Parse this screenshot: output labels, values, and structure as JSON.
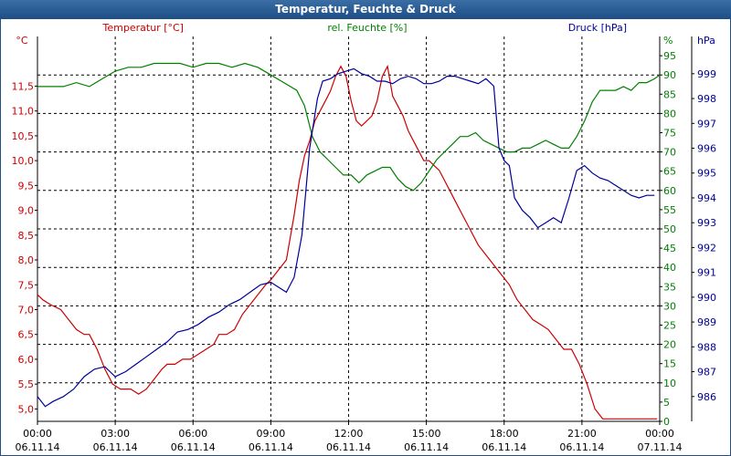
{
  "window": {
    "title": "Temperatur, Feuchte & Druck"
  },
  "colors": {
    "temperature": "#cc0000",
    "humidity": "#008000",
    "pressure": "#000099",
    "grid": "#000000",
    "titlebar": "#1f4f86"
  },
  "chart_data": {
    "type": "line",
    "title": "Temperatur, Feuchte & Druck",
    "grid": true,
    "x_labels": [
      {
        "time": "00:00",
        "date": "06.11.14"
      },
      {
        "time": "03:00",
        "date": "06.11.14"
      },
      {
        "time": "06:00",
        "date": "06.11.14"
      },
      {
        "time": "09:00",
        "date": "06.11.14"
      },
      {
        "time": "12:00",
        "date": "06.11.14"
      },
      {
        "time": "15:00",
        "date": "06.11.14"
      },
      {
        "time": "18:00",
        "date": "06.11.14"
      },
      {
        "time": "21:00",
        "date": "06.11.14"
      },
      {
        "time": "00:00",
        "date": "07.11.14"
      }
    ],
    "x_range_hours": [
      0,
      24
    ],
    "axes": {
      "temperature": {
        "label": "Temperatur [°C]",
        "unit": "°C",
        "range": [
          4.75,
          12.5
        ],
        "ticks": [
          "5,0",
          "5,5",
          "6,0",
          "6,5",
          "7,0",
          "7,5",
          "8,0",
          "8,5",
          "9,0",
          "9,5",
          "10,0",
          "10,5",
          "11,0",
          "11,5"
        ],
        "tick_values": [
          5,
          5.5,
          6,
          6.5,
          7,
          7.5,
          8,
          8.5,
          9,
          9.5,
          10,
          10.5,
          11,
          11.5
        ]
      },
      "humidity": {
        "label": "rel. Feuchte [%]",
        "unit": "%",
        "range": [
          0,
          100
        ],
        "ticks": [
          "0",
          "5",
          "10",
          "15",
          "20",
          "25",
          "30",
          "35",
          "40",
          "45",
          "50",
          "55",
          "60",
          "65",
          "70",
          "75",
          "80",
          "85",
          "90",
          "95"
        ],
        "tick_values": [
          0,
          5,
          10,
          15,
          20,
          25,
          30,
          35,
          40,
          45,
          50,
          55,
          60,
          65,
          70,
          75,
          80,
          85,
          90,
          95
        ]
      },
      "pressure": {
        "label": "Druck [hPa]",
        "unit": "hPa",
        "range": [
          985,
          1000.5
        ],
        "ticks": [
          "986",
          "987",
          "988",
          "989",
          "990",
          "991",
          "992",
          "993",
          "994",
          "995",
          "996",
          "997",
          "998",
          "999"
        ],
        "tick_values": [
          986,
          987,
          988,
          989,
          990,
          991,
          992,
          993,
          994,
          995,
          996,
          997,
          998,
          999
        ]
      }
    },
    "series": [
      {
        "name": "Temperatur [°C]",
        "axis": "temperature",
        "color": "#cc0000",
        "x": [
          0,
          0.2,
          0.5,
          0.9,
          1.2,
          1.5,
          1.8,
          2.0,
          2.3,
          2.6,
          2.9,
          3.2,
          3.6,
          3.9,
          4.2,
          4.5,
          4.8,
          5.0,
          5.3,
          5.6,
          5.9,
          6.2,
          6.5,
          6.8,
          7.0,
          7.3,
          7.6,
          7.9,
          8.2,
          8.5,
          8.8,
          9.0,
          9.3,
          9.6,
          9.9,
          10.1,
          10.3,
          10.5,
          10.7,
          10.9,
          11.1,
          11.3,
          11.5,
          11.7,
          11.9,
          12.1,
          12.3,
          12.5,
          12.7,
          12.9,
          13.1,
          13.3,
          13.5,
          13.7,
          13.9,
          14.1,
          14.3,
          14.5,
          14.7,
          14.9,
          15.1,
          15.3,
          15.5,
          15.7,
          15.9,
          16.1,
          16.4,
          16.7,
          17.0,
          17.3,
          17.6,
          17.9,
          18.2,
          18.5,
          18.8,
          19.1,
          19.4,
          19.7,
          20.0,
          20.3,
          20.6,
          20.9,
          21.2,
          21.5,
          21.8,
          22.1,
          22.4,
          22.7,
          23.0,
          23.3,
          23.6,
          23.9
        ],
        "values": [
          7.3,
          7.2,
          7.1,
          7.0,
          6.8,
          6.6,
          6.5,
          6.5,
          6.2,
          5.8,
          5.5,
          5.4,
          5.4,
          5.3,
          5.4,
          5.6,
          5.8,
          5.9,
          5.9,
          6.0,
          6.0,
          6.1,
          6.2,
          6.3,
          6.5,
          6.5,
          6.6,
          6.9,
          7.1,
          7.3,
          7.5,
          7.6,
          7.8,
          8.0,
          8.9,
          9.6,
          10.1,
          10.4,
          10.8,
          11.0,
          11.2,
          11.4,
          11.7,
          11.9,
          11.7,
          11.2,
          10.8,
          10.7,
          10.8,
          10.9,
          11.2,
          11.7,
          11.9,
          11.3,
          11.1,
          10.9,
          10.6,
          10.4,
          10.2,
          10.0,
          10.0,
          9.9,
          9.8,
          9.6,
          9.4,
          9.2,
          8.9,
          8.6,
          8.3,
          8.1,
          7.9,
          7.7,
          7.5,
          7.2,
          7.0,
          6.8,
          6.7,
          6.6,
          6.4,
          6.2,
          6.2,
          5.9,
          5.5,
          5.0,
          4.8,
          4.8,
          4.8,
          4.8,
          4.8,
          4.8,
          4.8,
          4.8
        ]
      },
      {
        "name": "rel. Feuchte [%]",
        "axis": "humidity",
        "color": "#008000",
        "x": [
          0,
          0.5,
          1.0,
          1.5,
          2.0,
          2.5,
          3.0,
          3.5,
          4.0,
          4.5,
          5.0,
          5.5,
          6.0,
          6.5,
          7.0,
          7.5,
          8.0,
          8.5,
          9.0,
          9.5,
          10.0,
          10.3,
          10.6,
          10.9,
          11.2,
          11.5,
          11.8,
          12.1,
          12.4,
          12.7,
          13.0,
          13.3,
          13.6,
          13.9,
          14.2,
          14.5,
          14.8,
          15.1,
          15.4,
          15.7,
          16.0,
          16.3,
          16.6,
          16.9,
          17.2,
          17.5,
          17.8,
          18.1,
          18.4,
          18.7,
          19.0,
          19.3,
          19.6,
          19.9,
          20.2,
          20.5,
          20.8,
          21.1,
          21.4,
          21.7,
          22.0,
          22.3,
          22.6,
          22.9,
          23.2,
          23.5,
          23.8,
          24.0
        ],
        "values": [
          87,
          87,
          87,
          88,
          87,
          89,
          91,
          92,
          92,
          93,
          93,
          93,
          92,
          93,
          93,
          92,
          93,
          92,
          90,
          88,
          86,
          82,
          74,
          70,
          68,
          66,
          64,
          64,
          62,
          64,
          65,
          66,
          66,
          63,
          61,
          60,
          62,
          65,
          68,
          70,
          72,
          74,
          74,
          75,
          73,
          72,
          71,
          70,
          70,
          71,
          71,
          72,
          73,
          72,
          71,
          71,
          74,
          78,
          83,
          86,
          86,
          86,
          87,
          86,
          88,
          88,
          89,
          90
        ]
      },
      {
        "name": "Druck [hPa]",
        "axis": "pressure",
        "color": "#000099",
        "x": [
          0,
          0.3,
          0.6,
          1.0,
          1.4,
          1.8,
          2.2,
          2.6,
          3.0,
          3.4,
          3.8,
          4.2,
          4.6,
          5.0,
          5.4,
          5.8,
          6.2,
          6.6,
          7.0,
          7.4,
          7.8,
          8.2,
          8.6,
          9.0,
          9.3,
          9.6,
          9.9,
          10.2,
          10.5,
          10.8,
          11.0,
          11.3,
          11.6,
          11.9,
          12.2,
          12.5,
          12.8,
          13.1,
          13.4,
          13.7,
          14.0,
          14.3,
          14.6,
          14.9,
          15.2,
          15.5,
          15.8,
          16.1,
          16.4,
          16.7,
          17.0,
          17.3,
          17.6,
          17.8,
          18.0,
          18.2,
          18.4,
          18.7,
          19.0,
          19.3,
          19.6,
          19.9,
          20.2,
          20.5,
          20.8,
          21.1,
          21.4,
          21.7,
          22.0,
          22.3,
          22.6,
          22.9,
          23.2,
          23.5,
          23.8
        ],
        "values": [
          986.0,
          985.6,
          985.8,
          986.0,
          986.3,
          986.8,
          987.1,
          987.2,
          986.8,
          987.0,
          987.3,
          987.6,
          987.9,
          988.2,
          988.6,
          988.7,
          988.9,
          989.2,
          989.4,
          989.7,
          989.9,
          990.2,
          990.5,
          990.6,
          990.4,
          990.2,
          990.8,
          992.5,
          996.0,
          998.0,
          998.7,
          998.8,
          999.0,
          999.1,
          999.2,
          999.0,
          998.9,
          998.7,
          998.7,
          998.6,
          998.8,
          998.9,
          998.8,
          998.6,
          998.6,
          998.7,
          998.9,
          998.9,
          998.8,
          998.7,
          998.6,
          998.8,
          998.5,
          996.0,
          995.5,
          995.3,
          994.0,
          993.5,
          993.2,
          992.8,
          993.0,
          993.2,
          993.0,
          994.0,
          995.1,
          995.3,
          995.0,
          994.8,
          994.7,
          994.5,
          994.3,
          994.1,
          994.0,
          994.1,
          994.1
        ]
      }
    ]
  }
}
